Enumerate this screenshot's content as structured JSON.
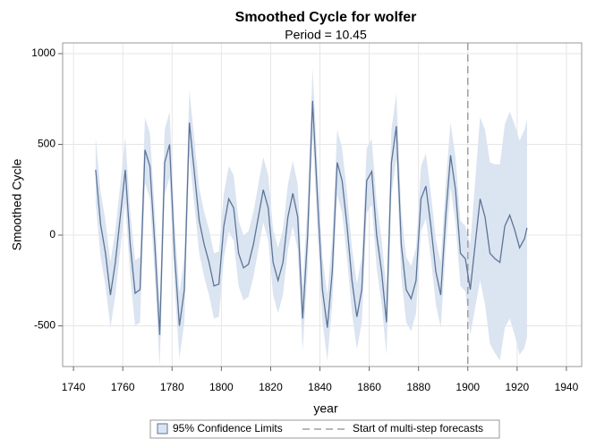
{
  "chart_data": {
    "type": "line",
    "title": "Smoothed Cycle for wolfer",
    "subtitle": "Period = 10.45",
    "x_label": "year",
    "y_label": "Smoothed Cycle",
    "xlim": [
      1735.6,
      1946.2
    ],
    "ylim": [
      -724,
      1059
    ],
    "xticks": [
      1740,
      1760,
      1780,
      1800,
      1820,
      1840,
      1860,
      1880,
      1900,
      1920,
      1940
    ],
    "yticks": [
      -500,
      0,
      500,
      1000
    ],
    "grid": true,
    "x": [
      1749,
      1751,
      1753,
      1755,
      1757,
      1759,
      1761,
      1763,
      1765,
      1767,
      1769,
      1771,
      1773,
      1775,
      1777,
      1779,
      1781,
      1783,
      1785,
      1787,
      1789,
      1791,
      1793,
      1795,
      1797,
      1799,
      1801,
      1803,
      1805,
      1807,
      1809,
      1811,
      1813,
      1815,
      1817,
      1819,
      1821,
      1823,
      1825,
      1827,
      1829,
      1831,
      1833,
      1835,
      1837,
      1839,
      1841,
      1843,
      1845,
      1847,
      1849,
      1851,
      1853,
      1855,
      1857,
      1859,
      1861,
      1863,
      1865,
      1867,
      1869,
      1871,
      1873,
      1875,
      1877,
      1879,
      1881,
      1883,
      1885,
      1887,
      1889,
      1891,
      1893,
      1895,
      1897,
      1899,
      1901,
      1903,
      1905,
      1907,
      1909,
      1911,
      1913,
      1915,
      1917,
      1919,
      1921,
      1923,
      1924
    ],
    "series": [
      {
        "color": "#5d7497",
        "values": [
          360,
          60,
          -100,
          -330,
          -150,
          100,
          360,
          -50,
          -320,
          -300,
          470,
          380,
          -50,
          -550,
          400,
          500,
          -100,
          -500,
          -300,
          620,
          350,
          80,
          -50,
          -150,
          -280,
          -270,
          50,
          200,
          150,
          -100,
          -180,
          -160,
          -50,
          100,
          250,
          150,
          -150,
          -250,
          -150,
          100,
          230,
          100,
          -460,
          0,
          740,
          200,
          -300,
          -510,
          -200,
          400,
          300,
          50,
          -250,
          -450,
          -300,
          300,
          350,
          0,
          -200,
          -480,
          400,
          600,
          -50,
          -300,
          -350,
          -250,
          200,
          270,
          50,
          -200,
          -330,
          100,
          440,
          250,
          -100,
          -130,
          -300,
          -50,
          200,
          100,
          -100,
          -130,
          -150,
          50,
          110,
          30,
          -70,
          -20,
          40
        ]
      }
    ],
    "band": {
      "name": "95% Confidence Limits",
      "color": "#dbe4f1",
      "upper": [
        540,
        240,
        80,
        -150,
        30,
        280,
        540,
        130,
        -140,
        -120,
        650,
        560,
        130,
        -370,
        580,
        680,
        80,
        -320,
        -120,
        800,
        530,
        260,
        130,
        30,
        -100,
        -90,
        230,
        380,
        330,
        80,
        0,
        20,
        130,
        280,
        430,
        330,
        30,
        -70,
        30,
        280,
        410,
        280,
        -280,
        180,
        920,
        380,
        -120,
        -330,
        -20,
        580,
        480,
        230,
        -70,
        -270,
        -120,
        480,
        530,
        180,
        -20,
        -300,
        580,
        780,
        130,
        -120,
        -170,
        -70,
        380,
        450,
        230,
        -20,
        -150,
        280,
        620,
        430,
        80,
        50,
        -50,
        300,
        650,
        580,
        400,
        390,
        390,
        610,
        680,
        610,
        520,
        580,
        640
      ],
      "lower": [
        180,
        -120,
        -280,
        -510,
        -330,
        -80,
        180,
        -230,
        -500,
        -480,
        290,
        200,
        -230,
        -730,
        220,
        320,
        -280,
        -680,
        -480,
        440,
        170,
        -100,
        -230,
        -330,
        -460,
        -450,
        -130,
        20,
        -30,
        -280,
        -360,
        -340,
        -230,
        -80,
        70,
        -30,
        -330,
        -430,
        -330,
        -80,
        50,
        -80,
        -640,
        -180,
        560,
        20,
        -480,
        -690,
        -380,
        220,
        120,
        -130,
        -430,
        -630,
        -480,
        120,
        170,
        -180,
        -380,
        -660,
        220,
        420,
        -230,
        -480,
        -530,
        -430,
        20,
        90,
        -130,
        -380,
        -510,
        -80,
        260,
        70,
        -280,
        -310,
        -550,
        -400,
        -250,
        -380,
        -600,
        -650,
        -690,
        -510,
        -460,
        -550,
        -660,
        -620,
        -560
      ]
    },
    "refline": {
      "x": 1900,
      "label": "Start of multi-step forecasts",
      "color": "#a0a0a0"
    }
  }
}
